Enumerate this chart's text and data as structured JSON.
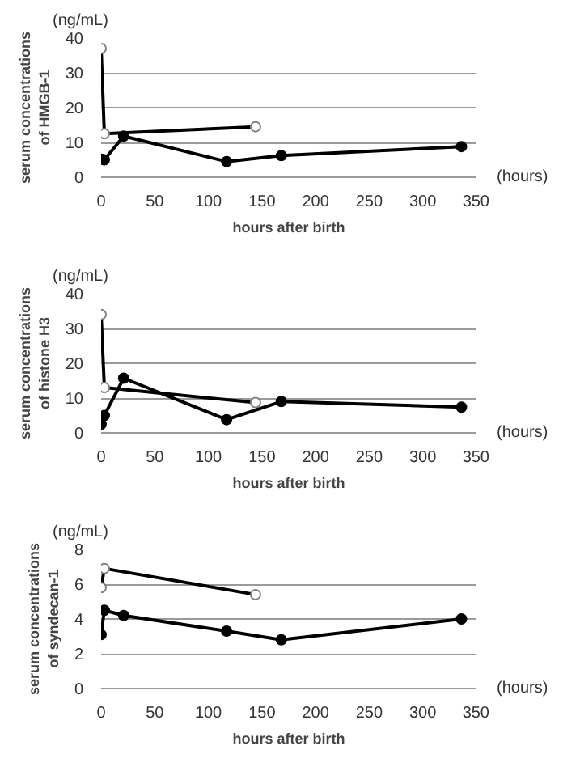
{
  "chart_data": [
    {
      "type": "line",
      "xlabel": "hours after birth",
      "ylabel": "serum concentrations\nof HMGB-1",
      "annotations": [
        "(ng/mL)",
        "(hours)"
      ],
      "xlim": [
        0,
        350
      ],
      "xticks": [
        0,
        50,
        100,
        150,
        200,
        250,
        300,
        350
      ],
      "ylim": [
        0,
        40
      ],
      "yticks": [
        0,
        10,
        20,
        30,
        40
      ],
      "grid": "y",
      "line_style": "solid",
      "series": [
        {
          "color": "#000000",
          "marker": "circle_open",
          "x": [
            0,
            3,
            144
          ],
          "values": [
            37,
            12.5,
            14.5
          ]
        },
        {
          "color": "#000000",
          "marker": "circle",
          "x": [
            0,
            3,
            21,
            117,
            168,
            336
          ],
          "values": [
            5.2,
            5,
            11.8,
            4.5,
            6.2,
            8.8
          ]
        }
      ]
    },
    {
      "type": "line",
      "xlabel": "hours after birth",
      "ylabel": "serum concentrations\nof histone H3",
      "annotations": [
        "(ng/mL)",
        "(hours)"
      ],
      "xlim": [
        0,
        350
      ],
      "xticks": [
        0,
        50,
        100,
        150,
        200,
        250,
        300,
        350
      ],
      "ylim": [
        0,
        40
      ],
      "yticks": [
        0,
        10,
        20,
        30,
        40
      ],
      "grid": "y",
      "line_style": "solid",
      "series": [
        {
          "color": "#000000",
          "marker": "circle_open",
          "x": [
            0,
            3,
            144
          ],
          "values": [
            34,
            13,
            8.7
          ]
        },
        {
          "color": "#000000",
          "marker": "circle",
          "x": [
            0,
            3,
            21,
            117,
            168,
            336
          ],
          "values": [
            2.5,
            5,
            15.7,
            3.8,
            9,
            7.4
          ]
        }
      ]
    },
    {
      "type": "line",
      "xlabel": "hours after birth",
      "ylabel": "serum concentrations\nof syndecan-1",
      "annotations": [
        "(ng/mL)",
        "(hours)"
      ],
      "xlim": [
        0,
        350
      ],
      "xticks": [
        0,
        50,
        100,
        150,
        200,
        250,
        300,
        350
      ],
      "ylim": [
        0,
        8
      ],
      "yticks": [
        0,
        2,
        4,
        6,
        8
      ],
      "grid": "y",
      "line_style": "solid",
      "series": [
        {
          "color": "#000000",
          "marker": "circle_open",
          "x": [
            0,
            3,
            144
          ],
          "values": [
            5.8,
            6.9,
            5.4
          ]
        },
        {
          "color": "#000000",
          "marker": "circle",
          "x": [
            0,
            3,
            21,
            117,
            168,
            336
          ],
          "values": [
            3.1,
            4.5,
            4.2,
            3.3,
            2.8,
            4.0
          ]
        }
      ]
    }
  ]
}
